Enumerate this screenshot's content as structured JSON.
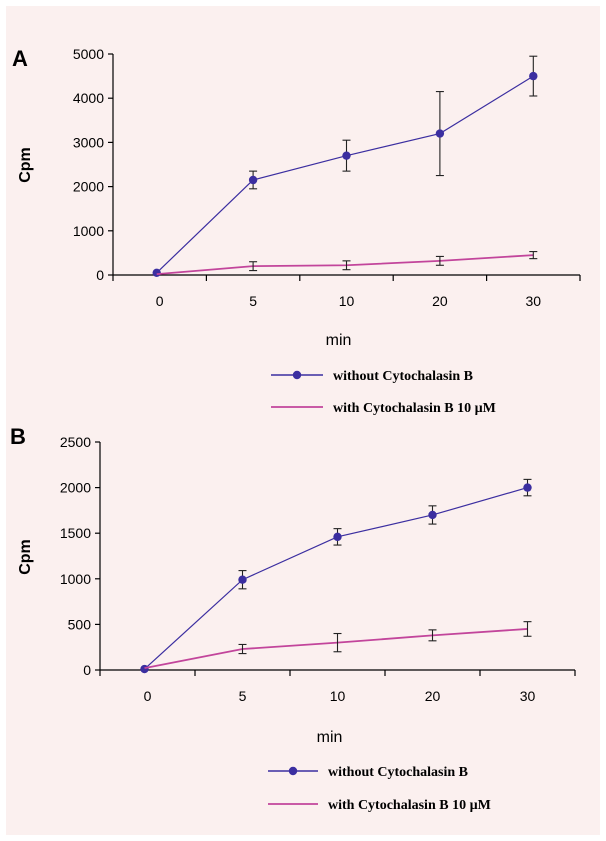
{
  "chart_data": [
    {
      "panel": "A",
      "type": "line",
      "categories": [
        "0",
        "5",
        "10",
        "20",
        "30"
      ],
      "ylabel": "Cpm",
      "xlabel": "min",
      "ylim": [
        0,
        5000
      ],
      "yticks": [
        0,
        1000,
        2000,
        3000,
        4000,
        5000
      ],
      "legend": "bottom",
      "series": [
        {
          "name": "without Cytochalasin B",
          "color": "#3b2ea0",
          "marker": "circle",
          "values": [
            50,
            2150,
            2700,
            3200,
            4500
          ],
          "errors": [
            0,
            200,
            350,
            950,
            450
          ]
        },
        {
          "name": "with Cytochalasin B 10 µM",
          "color": "#c2459b",
          "marker": "none",
          "values": [
            20,
            200,
            220,
            320,
            450
          ],
          "errors": [
            0,
            100,
            100,
            100,
            80
          ]
        }
      ]
    },
    {
      "panel": "B",
      "type": "line",
      "categories": [
        "0",
        "5",
        "10",
        "20",
        "30"
      ],
      "ylabel": "Cpm",
      "xlabel": "min",
      "ylim": [
        0,
        2500
      ],
      "yticks": [
        0,
        500,
        1000,
        1500,
        2000,
        2500
      ],
      "legend": "bottom",
      "series": [
        {
          "name": "without Cytochalasin B",
          "color": "#3b2ea0",
          "marker": "circle",
          "values": [
            10,
            990,
            1460,
            1700,
            2000
          ],
          "errors": [
            0,
            100,
            90,
            100,
            90
          ]
        },
        {
          "name": "with Cytochalasin B 10 µM",
          "color": "#c2459b",
          "marker": "none",
          "values": [
            20,
            230,
            300,
            380,
            450
          ],
          "errors": [
            0,
            50,
            100,
            60,
            80
          ]
        }
      ]
    }
  ]
}
